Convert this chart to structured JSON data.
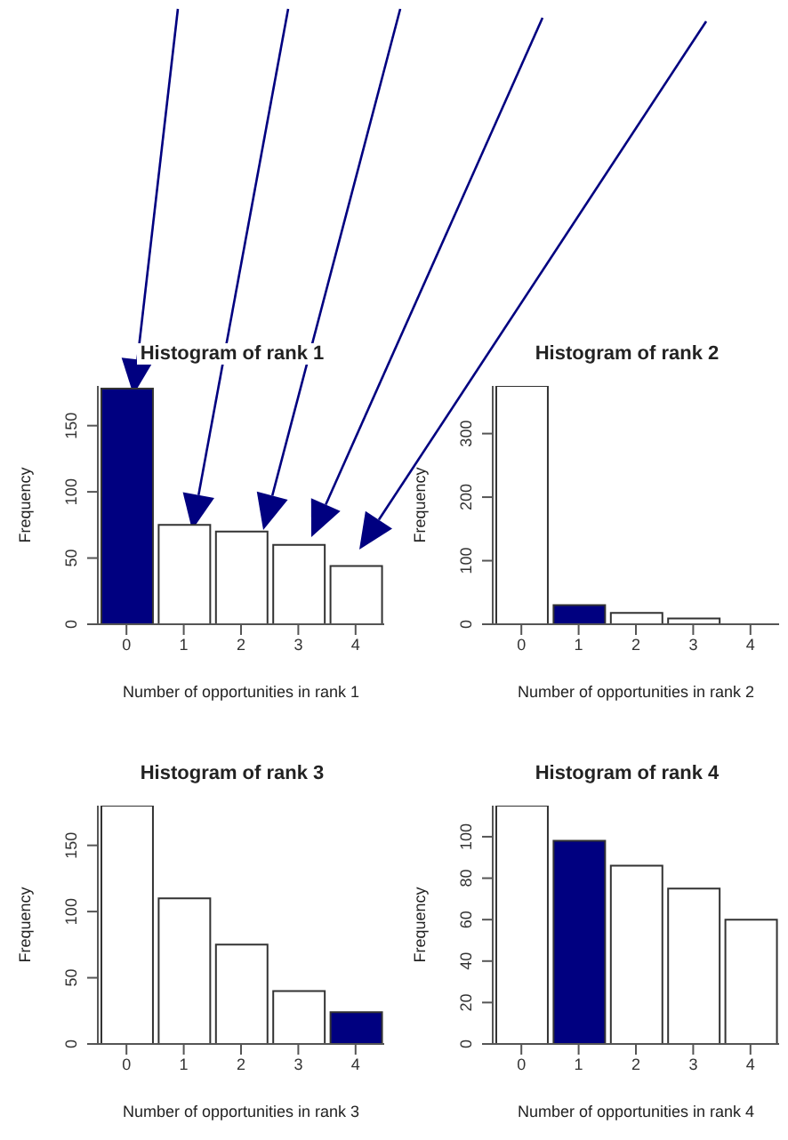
{
  "chart_data": [
    {
      "type": "histogram",
      "title": "Histogram of rank 1",
      "xlabel": "Number of opportunities in rank 1",
      "ylabel": "Frequency",
      "bins": [
        -0.5,
        0.5,
        1.5,
        2.5,
        3.5,
        4.5
      ],
      "values": [
        178,
        75,
        70,
        60,
        44
      ],
      "colors": [
        "#000080",
        "#ffffff",
        "#ffffff",
        "#ffffff",
        "#ffffff"
      ],
      "xticks": [
        0,
        1,
        2,
        3,
        4
      ],
      "xlim": [
        -0.5,
        4.5
      ],
      "ylim": [
        0,
        180
      ],
      "yticks": [
        0,
        50,
        100,
        150
      ],
      "grid": false
    },
    {
      "type": "histogram",
      "title": "Histogram of rank 2",
      "xlabel": "Number of opportunities in rank 2",
      "ylabel": "Frequency",
      "bins": [
        -0.5,
        0.5,
        1.5,
        2.5,
        3.5,
        4.5
      ],
      "values": [
        375,
        30,
        18,
        9,
        0
      ],
      "colors": [
        "#ffffff",
        "#000080",
        "#ffffff",
        "#ffffff",
        "#ffffff"
      ],
      "xticks": [
        0,
        1,
        2,
        3,
        4
      ],
      "xlim": [
        -0.5,
        4.5
      ],
      "ylim": [
        0,
        375
      ],
      "yticks": [
        0,
        100,
        200,
        300
      ],
      "grid": false
    },
    {
      "type": "histogram",
      "title": "Histogram of rank 3",
      "xlabel": "Number of opportunities in rank 3",
      "ylabel": "Frequency",
      "bins": [
        -0.5,
        0.5,
        1.5,
        2.5,
        3.5,
        4.5
      ],
      "values": [
        180,
        110,
        75,
        40,
        24
      ],
      "colors": [
        "#ffffff",
        "#ffffff",
        "#ffffff",
        "#ffffff",
        "#000080"
      ],
      "xticks": [
        0,
        1,
        2,
        3,
        4
      ],
      "xlim": [
        -0.5,
        4.5
      ],
      "ylim": [
        0,
        180
      ],
      "yticks": [
        0,
        50,
        100,
        150
      ],
      "grid": false
    },
    {
      "type": "histogram",
      "title": "Histogram of rank 4",
      "xlabel": "Number of opportunities in rank 4",
      "ylabel": "Frequency",
      "bins": [
        -0.5,
        0.5,
        1.5,
        2.5,
        3.5,
        4.5
      ],
      "values": [
        115,
        98,
        86,
        75,
        60
      ],
      "colors": [
        "#ffffff",
        "#000080",
        "#ffffff",
        "#ffffff",
        "#ffffff"
      ],
      "xticks": [
        0,
        1,
        2,
        3,
        4
      ],
      "xlim": [
        -0.5,
        4.5
      ],
      "ylim": [
        0,
        115
      ],
      "yticks": [
        0,
        20,
        40,
        60,
        80,
        100
      ],
      "grid": false
    }
  ]
}
